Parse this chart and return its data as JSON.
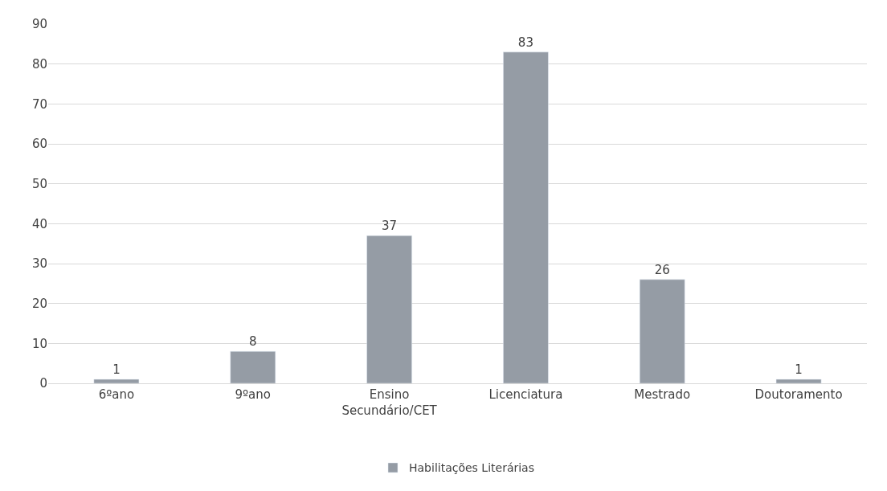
{
  "chart_data": {
    "type": "bar",
    "categories": [
      "6ºano",
      "9ºano",
      "Ensino Secundário/CET",
      "Licenciatura",
      "Mestrado",
      "Doutoramento"
    ],
    "series": [
      {
        "name": "Habilitações Literárias",
        "color": "#959ca5",
        "values": [
          1,
          8,
          37,
          83,
          26,
          1
        ]
      }
    ],
    "ylim": [
      0,
      90
    ],
    "yticks": [
      0,
      10,
      20,
      30,
      40,
      50,
      60,
      70,
      80,
      90
    ],
    "grid": "y",
    "legend": "bottom",
    "data_labels": true
  }
}
